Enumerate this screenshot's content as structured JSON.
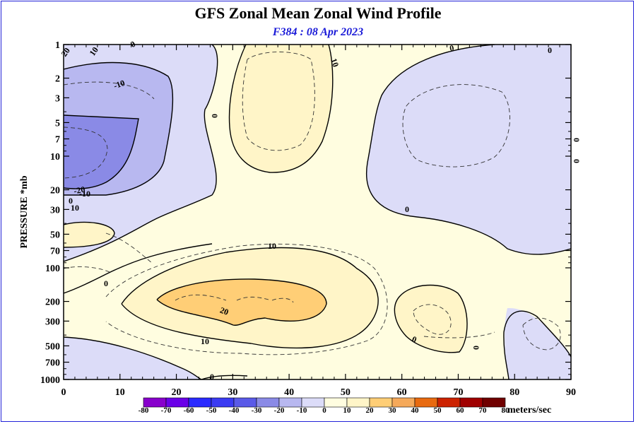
{
  "title": "GFS Zonal Mean Zonal Wind Profile",
  "subtitle": "F384 : 08 Apr 2023",
  "chart_data": {
    "type": "contour",
    "ylabel": "PRESSURE *mb",
    "xlim": [
      0,
      90
    ],
    "ylim": [
      1000,
      1
    ],
    "y_scale": "log",
    "x_ticks": [
      "0",
      "10",
      "20",
      "30",
      "40",
      "50",
      "60",
      "70",
      "80",
      "90"
    ],
    "y_ticks": [
      "1",
      "2",
      "3",
      "5",
      "7",
      "10",
      "20",
      "30",
      "50",
      "70",
      "100",
      "200",
      "300",
      "500",
      "700",
      "1000"
    ],
    "colorbar": {
      "unit": "meters/sec",
      "levels": [
        "-80",
        "-70",
        "-60",
        "-50",
        "-40",
        "-30",
        "-20",
        "-10",
        "0",
        "10",
        "20",
        "30",
        "40",
        "50",
        "60",
        "70",
        "80"
      ],
      "colors": [
        "#8800cc",
        "#6a00e8",
        "#2a2aff",
        "#3b3bf2",
        "#5a5ae8",
        "#8a8ae6",
        "#b8b8f0",
        "#dcdcf8",
        "#fffde0",
        "#fff5c8",
        "#ffce76",
        "#f5a95a",
        "#e86a10",
        "#cc2200",
        "#a00000",
        "#700000",
        "#8a7a30"
      ]
    },
    "regions": [
      {
        "level": "-10",
        "lat": [
          0,
          45
        ],
        "p": [
          1,
          100
        ]
      },
      {
        "level": "-20",
        "lat": [
          0,
          20
        ],
        "p": [
          3,
          20
        ]
      },
      {
        "level": "-30",
        "lat": [
          0,
          13
        ],
        "p": [
          5,
          18
        ]
      },
      {
        "level": "10",
        "lat": [
          0,
          9
        ],
        "p": [
          30,
          70
        ]
      },
      {
        "level": "10",
        "lat": [
          30,
          54
        ],
        "p": [
          1,
          15
        ]
      },
      {
        "level": "10",
        "lat": [
          12,
          57
        ],
        "p": [
          90,
          600
        ]
      },
      {
        "level": "20",
        "lat": [
          16,
          46
        ],
        "p": [
          150,
          320
        ]
      },
      {
        "level": "10",
        "lat": [
          59,
          71
        ],
        "p": [
          150,
          550
        ]
      },
      {
        "level": "-10",
        "lat": [
          54,
          90
        ],
        "p": [
          1,
          80
        ]
      },
      {
        "level": "-10",
        "lat": [
          0,
          12
        ],
        "p": [
          500,
          1000
        ]
      },
      {
        "level": "-10",
        "lat": [
          71,
          90
        ],
        "p": [
          220,
          1000
        ]
      }
    ],
    "contour_labels": [
      "20",
      "10",
      "0",
      "-10",
      "-20",
      "-10",
      "0",
      "10",
      "10",
      "0",
      "0",
      "0",
      "10",
      "20",
      "10",
      "0",
      "0",
      "0",
      "0",
      "0",
      "0",
      "0"
    ]
  }
}
